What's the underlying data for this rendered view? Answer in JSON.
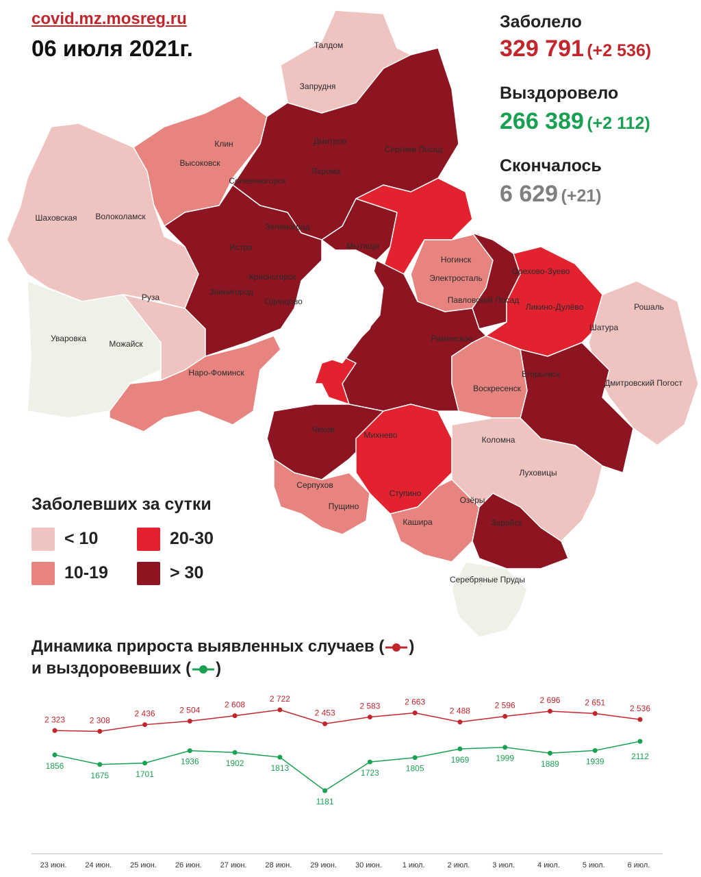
{
  "header": {
    "site": "covid.mz.mosreg.ru",
    "date": "06 июля 2021г."
  },
  "stats": {
    "infected_label": "Заболело",
    "infected_value": "329 791",
    "infected_delta": "(+2 536)",
    "recovered_label": "Выздоровело",
    "recovered_value": "266 389",
    "recovered_delta": "(+2 112)",
    "died_label": "Скончалось",
    "died_value": "6 629",
    "died_delta": "(+21)"
  },
  "colors": {
    "infected": "#c1262d",
    "recovered": "#1aa052",
    "died": "#7f7f7f",
    "lt10": "#efc4c0",
    "r10_19": "#e78480",
    "r20_30": "#e3222f",
    "gt30": "#8d1421",
    "none": "#eef1e8"
  },
  "legend": {
    "title": "Заболевших за сутки",
    "items": [
      {
        "label": "< 10",
        "color": "#efc4c0"
      },
      {
        "label": "20-30",
        "color": "#e3222f"
      },
      {
        "label": "10-19",
        "color": "#e78480"
      },
      {
        "label": "> 30",
        "color": "#8d1421"
      }
    ]
  },
  "map_labels": [
    "Талдом",
    "Запрудня",
    "Дмитров",
    "Сергиев Посад",
    "Клин",
    "Высоковск",
    "Яхрома",
    "Солнечногорск",
    "Шаховская",
    "Волоколамск",
    "Зеленоград",
    "Истра",
    "Мытищи",
    "Ногинск",
    "Орехово-Зуево",
    "Электросталь",
    "Красногорск",
    "Звенигород",
    "Одинцово",
    "Павловский Посад",
    "Ликино-Дулёво",
    "Рошаль",
    "Руза",
    "Шатура",
    "Уваровка",
    "Можайск",
    "Раменское",
    "Наро-Фоминск",
    "Егорьевск",
    "Дмитровский Погост",
    "Воскресенск",
    "Чехов",
    "Михнево",
    "Коломна",
    "Луховицы",
    "Серпухов",
    "Ступино",
    "Пущино",
    "Озёры",
    "Кашира",
    "Зарайск",
    "Серебряные Пруды"
  ],
  "chart_titles": {
    "line1": "Динамика прироста выявленных случаев (",
    "line2": "и выздоровевших ("
  },
  "chart_data": {
    "type": "line",
    "categories": [
      "23 июн.",
      "24 июн.",
      "25 июн.",
      "26 июн.",
      "27 июн.",
      "28 июн.",
      "29 июн.",
      "30 июн.",
      "1 июл.",
      "2 июл.",
      "3 июл.",
      "4 июл.",
      "5 июл.",
      "6 июл."
    ],
    "series": [
      {
        "name": "выявленных случаев",
        "color": "#c1262d",
        "values": [
          2323,
          2308,
          2436,
          2504,
          2608,
          2722,
          2453,
          2583,
          2663,
          2488,
          2596,
          2696,
          2651,
          2536
        ],
        "labels": [
          "2 323",
          "2 308",
          "2 436",
          "2 504",
          "2 608",
          "2 722",
          "2 453",
          "2 583",
          "2 663",
          "2 488",
          "2 596",
          "2 696",
          "2 651",
          "2 536"
        ]
      },
      {
        "name": "выздоровевших",
        "color": "#1aa052",
        "values": [
          1856,
          1675,
          1701,
          1936,
          1902,
          1813,
          1181,
          1723,
          1805,
          1969,
          1999,
          1889,
          1939,
          2112
        ],
        "labels": [
          "1856",
          "1675",
          "1701",
          "1936",
          "1902",
          "1813",
          "1181",
          "1723",
          "1805",
          "1969",
          "1999",
          "1889",
          "1939",
          "2112"
        ]
      }
    ],
    "legend": "inline in title",
    "grid": false
  }
}
